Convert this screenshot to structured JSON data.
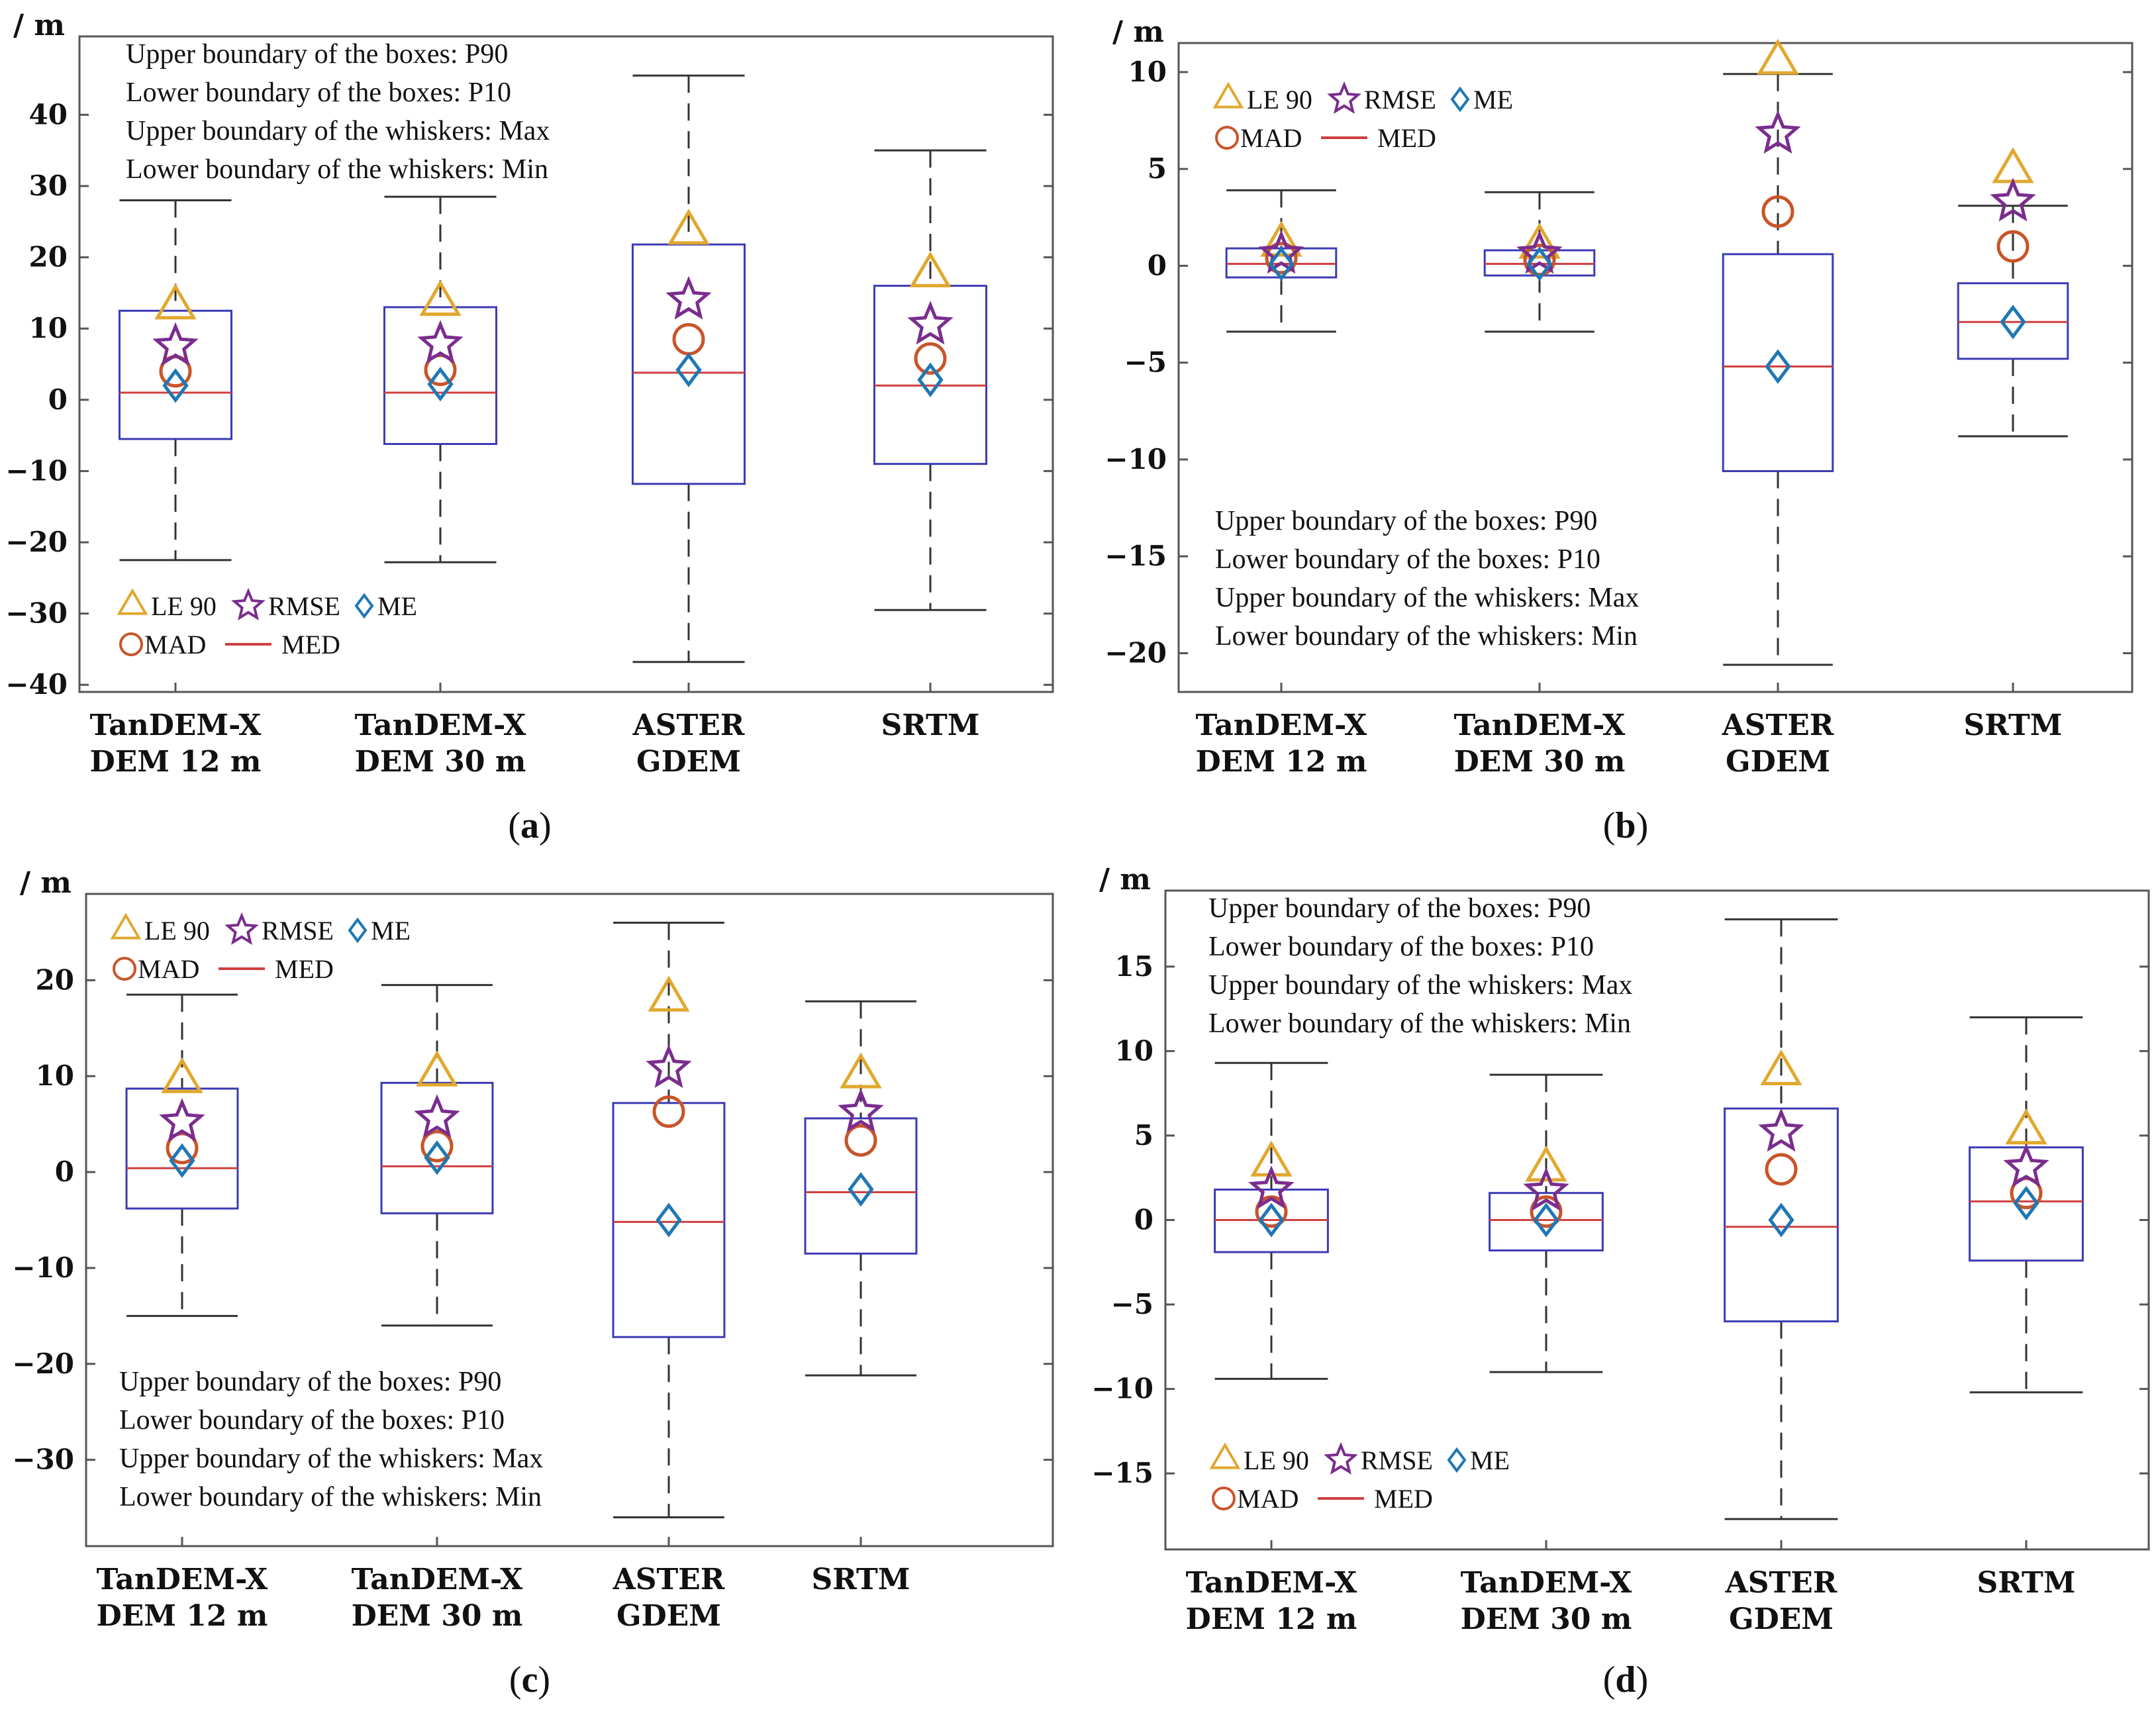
{
  "figure": {
    "styles": {
      "le90": "#E0A82E",
      "rmse": "#7B2D8E",
      "me": "#1F77B4",
      "mad": "#C8552A",
      "med": "#D04040",
      "box": "#3B3BB5",
      "whisker": "#333333",
      "frame": "#555555"
    },
    "legend": {
      "le90": "LE 90",
      "rmse": "RMSE",
      "me": "ME",
      "mad": "MAD",
      "med": "MED"
    },
    "notes": [
      "Upper boundary of the boxes: P90",
      "Lower boundary of the boxes: P10",
      "Upper boundary of the whiskers: Max",
      "Lower boundary of the whiskers: Min"
    ]
  },
  "chart_data": [
    {
      "id": "a",
      "panel_label": "a",
      "type": "box",
      "ylabel": "/ m",
      "ylim": [
        -41,
        51
      ],
      "yticks": [
        -40,
        -30,
        -20,
        -10,
        0,
        10,
        20,
        30,
        40
      ],
      "categories": [
        [
          "TanDEM-X",
          "DEM 12 m"
        ],
        [
          "TanDEM-X",
          "DEM 30 m"
        ],
        [
          "ASTER",
          "GDEM"
        ],
        [
          "SRTM",
          ""
        ]
      ],
      "boxes": [
        {
          "min": -22.5,
          "p10": -5.5,
          "med": 1.0,
          "p90": 12.5,
          "max": 28.0,
          "le90": 13.0,
          "rmse": 7.5,
          "mad": 4.0,
          "me": 2.0
        },
        {
          "min": -22.8,
          "p10": -6.2,
          "med": 1.0,
          "p90": 13.0,
          "max": 28.5,
          "le90": 13.5,
          "rmse": 7.8,
          "mad": 4.2,
          "me": 2.2
        },
        {
          "min": -36.8,
          "p10": -11.8,
          "med": 3.8,
          "p90": 21.8,
          "max": 45.5,
          "le90": 23.5,
          "rmse": 14.0,
          "mad": 8.5,
          "me": 4.2
        },
        {
          "min": -29.5,
          "p10": -9.0,
          "med": 2.0,
          "p90": 16.0,
          "max": 35.0,
          "le90": 17.5,
          "rmse": 10.5,
          "mad": 5.8,
          "me": 2.8
        }
      ],
      "legend_position": "bottom-left",
      "notes_position": "top-left"
    },
    {
      "id": "b",
      "panel_label": "b",
      "type": "box",
      "ylabel": "/ m",
      "ylim": [
        -22,
        11.5
      ],
      "yticks": [
        -20,
        -15,
        -10,
        -5,
        0,
        5,
        10
      ],
      "categories": [
        [
          "TanDEM-X",
          "DEM 12 m"
        ],
        [
          "TanDEM-X",
          "DEM 30 m"
        ],
        [
          "ASTER",
          "GDEM"
        ],
        [
          "SRTM",
          ""
        ]
      ],
      "boxes": [
        {
          "min": -3.4,
          "p10": -0.6,
          "med": 0.1,
          "p90": 0.9,
          "max": 3.9,
          "le90": 1.1,
          "rmse": 0.6,
          "mad": 0.4,
          "me": 0.1
        },
        {
          "min": -3.4,
          "p10": -0.5,
          "med": 0.1,
          "p90": 0.8,
          "max": 3.8,
          "le90": 1.0,
          "rmse": 0.6,
          "mad": 0.3,
          "me": 0.1
        },
        {
          "min": -20.6,
          "p10": -10.6,
          "med": -5.2,
          "p90": 0.6,
          "max": 9.9,
          "le90": 10.5,
          "rmse": 6.8,
          "mad": 2.8,
          "me": -5.2
        },
        {
          "min": -8.8,
          "p10": -4.8,
          "med": -2.9,
          "p90": -0.9,
          "max": 3.1,
          "le90": 4.9,
          "rmse": 3.3,
          "mad": 1.0,
          "me": -2.9
        }
      ],
      "legend_position": "top-left",
      "notes_position": "bottom-left"
    },
    {
      "id": "c",
      "panel_label": "c",
      "type": "box",
      "ylabel": "/ m",
      "ylim": [
        -39,
        29
      ],
      "yticks": [
        -30,
        -20,
        -10,
        0,
        10,
        20
      ],
      "categories": [
        [
          "TanDEM-X",
          "DEM 12 m"
        ],
        [
          "TanDEM-X",
          "DEM 30 m"
        ],
        [
          "ASTER",
          "GDEM"
        ],
        [
          "SRTM",
          ""
        ]
      ],
      "boxes": [
        {
          "min": -15.0,
          "p10": -3.8,
          "med": 0.4,
          "p90": 8.7,
          "max": 18.5,
          "le90": 9.5,
          "rmse": 5.2,
          "mad": 2.5,
          "me": 1.2
        },
        {
          "min": -16.0,
          "p10": -4.3,
          "med": 0.6,
          "p90": 9.3,
          "max": 19.5,
          "le90": 10.2,
          "rmse": 5.6,
          "mad": 2.7,
          "me": 1.5
        },
        {
          "min": -36.0,
          "p10": -17.2,
          "med": -5.2,
          "p90": 7.2,
          "max": 26.0,
          "le90": 18.0,
          "rmse": 10.8,
          "mad": 6.3,
          "me": -5.0
        },
        {
          "min": -21.2,
          "p10": -8.5,
          "med": -2.1,
          "p90": 5.6,
          "max": 17.8,
          "le90": 10.0,
          "rmse": 6.2,
          "mad": 3.3,
          "me": -1.8
        }
      ],
      "legend_position": "top-left",
      "notes_position": "bottom-left"
    },
    {
      "id": "d",
      "panel_label": "d",
      "type": "box",
      "ylabel": "/ m",
      "ylim": [
        -19.5,
        19.5
      ],
      "yticks": [
        -15,
        -10,
        -5,
        0,
        5,
        10,
        15
      ],
      "categories": [
        [
          "TanDEM-X",
          "DEM 12 m"
        ],
        [
          "TanDEM-X",
          "DEM 30 m"
        ],
        [
          "ASTER",
          "GDEM"
        ],
        [
          "SRTM",
          ""
        ]
      ],
      "boxes": [
        {
          "min": -9.4,
          "p10": -1.9,
          "med": 0.0,
          "p90": 1.8,
          "max": 9.3,
          "le90": 3.3,
          "rmse": 1.8,
          "mad": 0.5,
          "me": 0.0
        },
        {
          "min": -9.0,
          "p10": -1.8,
          "med": 0.0,
          "p90": 1.6,
          "max": 8.6,
          "le90": 3.0,
          "rmse": 1.7,
          "mad": 0.5,
          "me": 0.0
        },
        {
          "min": -17.7,
          "p10": -6.0,
          "med": -0.4,
          "p90": 6.6,
          "max": 17.8,
          "le90": 8.7,
          "rmse": 5.2,
          "mad": 3.0,
          "me": 0.0
        },
        {
          "min": -10.2,
          "p10": -2.4,
          "med": 1.1,
          "p90": 4.3,
          "max": 12.0,
          "le90": 5.2,
          "rmse": 3.1,
          "mad": 1.6,
          "me": 1.0
        }
      ],
      "legend_position": "bottom-left",
      "notes_position": "top-left"
    }
  ]
}
